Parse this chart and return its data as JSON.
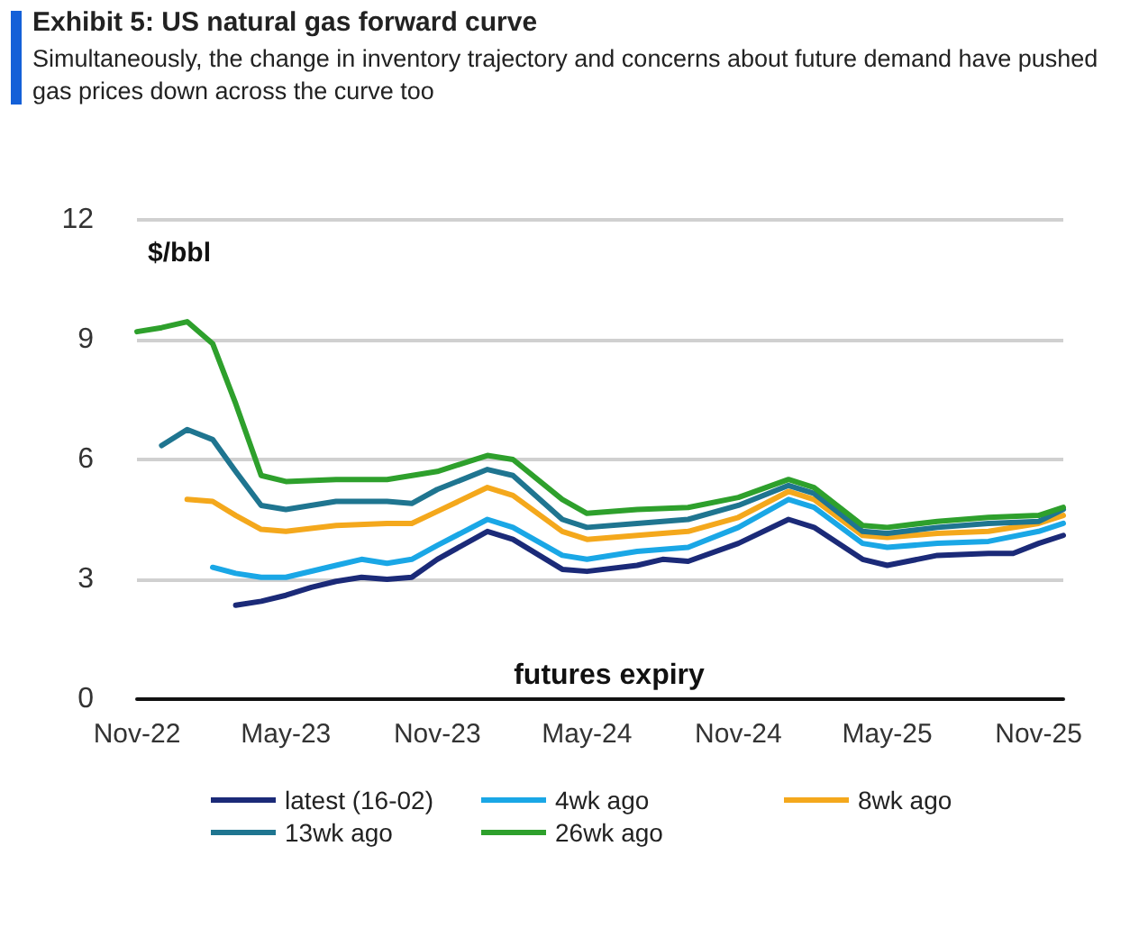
{
  "chart_data": {
    "type": "line",
    "title": "Exhibit 5: US natural gas forward curve",
    "subtitle": "Simultaneously, the change in inventory trajectory and concerns about future demand have pushed gas prices down across the curve too",
    "xlabel": "futures expiry",
    "ylabel": "$/bbl",
    "series": [
      {
        "name": "latest (16-02)",
        "color": "#1b2a78",
        "x": [
          "2023-03",
          "2023-04",
          "2023-05",
          "2023-06",
          "2023-07",
          "2023-08",
          "2023-09",
          "2023-10",
          "2023-11",
          "2024-01",
          "2024-02",
          "2024-04",
          "2024-05",
          "2024-07",
          "2024-08",
          "2024-09",
          "2024-11",
          "2025-01",
          "2025-02",
          "2025-04",
          "2025-05",
          "2025-07",
          "2025-09",
          "2025-10",
          "2025-11",
          "2025-12"
        ],
        "values": [
          2.35,
          2.45,
          2.6,
          2.8,
          2.95,
          3.05,
          3.0,
          3.05,
          3.5,
          4.2,
          4.0,
          3.25,
          3.2,
          3.35,
          3.5,
          3.45,
          3.9,
          4.5,
          4.3,
          3.5,
          3.35,
          3.6,
          3.65,
          3.65,
          3.9,
          4.1
        ]
      },
      {
        "name": "4wk ago",
        "color": "#1aa7e6",
        "x": [
          "2023-02",
          "2023-03",
          "2023-04",
          "2023-05",
          "2023-07",
          "2023-08",
          "2023-09",
          "2023-10",
          "2023-11",
          "2024-01",
          "2024-02",
          "2024-04",
          "2024-05",
          "2024-07",
          "2024-09",
          "2024-11",
          "2025-01",
          "2025-02",
          "2025-04",
          "2025-05",
          "2025-07",
          "2025-09",
          "2025-11",
          "2025-12"
        ],
        "values": [
          3.3,
          3.15,
          3.05,
          3.05,
          3.35,
          3.5,
          3.4,
          3.5,
          3.85,
          4.5,
          4.3,
          3.6,
          3.5,
          3.7,
          3.8,
          4.3,
          5.0,
          4.8,
          3.9,
          3.8,
          3.9,
          3.95,
          4.2,
          4.4
        ]
      },
      {
        "name": "8wk ago",
        "color": "#f4a81c",
        "x": [
          "2023-01",
          "2023-02",
          "2023-03",
          "2023-04",
          "2023-05",
          "2023-07",
          "2023-09",
          "2023-10",
          "2023-11",
          "2024-01",
          "2024-02",
          "2024-04",
          "2024-05",
          "2024-07",
          "2024-09",
          "2024-11",
          "2025-01",
          "2025-02",
          "2025-04",
          "2025-05",
          "2025-07",
          "2025-09",
          "2025-11",
          "2025-12"
        ],
        "values": [
          5.0,
          4.95,
          4.6,
          4.25,
          4.2,
          4.35,
          4.4,
          4.4,
          4.7,
          5.3,
          5.1,
          4.2,
          4.0,
          4.1,
          4.2,
          4.55,
          5.2,
          5.0,
          4.1,
          4.05,
          4.15,
          4.2,
          4.4,
          4.6
        ]
      },
      {
        "name": "13wk ago",
        "color": "#1f7590",
        "x": [
          "2022-12",
          "2023-01",
          "2023-02",
          "2023-03",
          "2023-04",
          "2023-05",
          "2023-07",
          "2023-09",
          "2023-10",
          "2023-11",
          "2024-01",
          "2024-02",
          "2024-04",
          "2024-05",
          "2024-07",
          "2024-09",
          "2024-11",
          "2025-01",
          "2025-02",
          "2025-04",
          "2025-05",
          "2025-07",
          "2025-09",
          "2025-11",
          "2025-12"
        ],
        "values": [
          6.35,
          6.75,
          6.5,
          5.7,
          4.85,
          4.75,
          4.95,
          4.95,
          4.9,
          5.25,
          5.75,
          5.6,
          4.5,
          4.3,
          4.4,
          4.5,
          4.85,
          5.35,
          5.15,
          4.2,
          4.15,
          4.3,
          4.4,
          4.45,
          4.75
        ]
      },
      {
        "name": "26wk ago",
        "color": "#2ea02c",
        "x": [
          "2022-11",
          "2022-12",
          "2023-01",
          "2023-02",
          "2023-03",
          "2023-04",
          "2023-05",
          "2023-07",
          "2023-09",
          "2023-11",
          "2024-01",
          "2024-02",
          "2024-04",
          "2024-05",
          "2024-07",
          "2024-09",
          "2024-11",
          "2025-01",
          "2025-02",
          "2025-04",
          "2025-05",
          "2025-07",
          "2025-09",
          "2025-11",
          "2025-12"
        ],
        "values": [
          9.2,
          9.3,
          9.45,
          8.9,
          7.4,
          5.6,
          5.45,
          5.5,
          5.5,
          5.7,
          6.1,
          6.0,
          5.0,
          4.65,
          4.75,
          4.8,
          5.05,
          5.5,
          5.3,
          4.35,
          4.3,
          4.45,
          4.55,
          4.6,
          4.8
        ]
      }
    ],
    "xlim": [
      "2022-11",
      "2025-12"
    ],
    "xticks": [
      {
        "value": "2022-11",
        "label": "Nov-22"
      },
      {
        "value": "2023-05",
        "label": "May-23"
      },
      {
        "value": "2023-11",
        "label": "Nov-23"
      },
      {
        "value": "2024-05",
        "label": "May-24"
      },
      {
        "value": "2024-11",
        "label": "Nov-24"
      },
      {
        "value": "2025-05",
        "label": "May-25"
      },
      {
        "value": "2025-11",
        "label": "Nov-25"
      }
    ],
    "ylim": [
      0,
      12
    ],
    "yticks": [
      0,
      3,
      6,
      9,
      12
    ],
    "grid": "y",
    "legend": "bottom",
    "marker": "none",
    "line_style": "solid"
  }
}
